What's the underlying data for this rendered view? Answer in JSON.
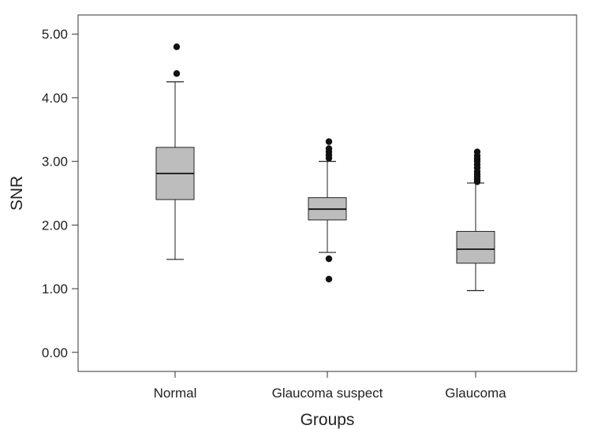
{
  "chart_data": {
    "type": "box",
    "title": "",
    "xlabel": "Groups",
    "ylabel": "SNR",
    "ylim": [
      -0.3,
      5.3
    ],
    "yticks": [
      0,
      1,
      2,
      3,
      4,
      5
    ],
    "ytick_labels": [
      "0.00",
      "1.00",
      "2.00",
      "3.00",
      "4.00",
      "5.00"
    ],
    "grid": false,
    "categories": [
      "Normal",
      "Glaucoma suspect",
      "Glaucoma"
    ],
    "box_color": "#bdbdbd",
    "outlier_color": "#111111",
    "boxes": [
      {
        "whisker_low": 1.46,
        "q1": 2.4,
        "median": 2.81,
        "q3": 3.22,
        "whisker_high": 4.25,
        "outliers": [
          4.38,
          4.8
        ]
      },
      {
        "whisker_low": 1.57,
        "q1": 2.08,
        "median": 2.25,
        "q3": 2.43,
        "whisker_high": 3.0,
        "outliers": [
          1.15,
          1.47,
          3.05,
          3.1,
          3.15,
          3.2,
          3.31
        ]
      },
      {
        "whisker_low": 0.97,
        "q1": 1.4,
        "median": 1.62,
        "q3": 1.9,
        "whisker_high": 2.66,
        "outliers": [
          2.68,
          2.72,
          2.76,
          2.8,
          2.84,
          2.9,
          2.95,
          3.0,
          3.04,
          3.09,
          3.15
        ]
      }
    ]
  }
}
